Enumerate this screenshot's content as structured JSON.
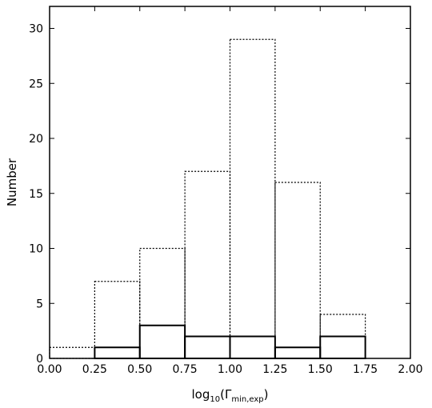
{
  "chart_data": {
    "type": "bar",
    "xlabel": "log10(Γmin,exp)",
    "xlabel_parts": {
      "main": "log",
      "sub1": "10",
      "open": "(Γ",
      "sub2": "min,exp",
      "close": ")"
    },
    "ylabel": "Number",
    "xlim": [
      0.0,
      2.0
    ],
    "ylim": [
      0,
      32
    ],
    "xticks": [
      0.0,
      0.25,
      0.5,
      0.75,
      1.0,
      1.25,
      1.5,
      1.75,
      2.0
    ],
    "xtick_labels": [
      "0.00",
      "0.25",
      "0.50",
      "0.75",
      "1.00",
      "1.25",
      "1.50",
      "1.75",
      "2.00"
    ],
    "yticks": [
      0,
      5,
      10,
      15,
      20,
      25,
      30
    ],
    "ytick_labels": [
      "0",
      "5",
      "10",
      "15",
      "20",
      "25",
      "30"
    ],
    "bin_edges": [
      0.0,
      0.25,
      0.5,
      0.75,
      1.0,
      1.25,
      1.5,
      1.75,
      2.0
    ],
    "series": [
      {
        "style": "dotted",
        "values": [
          1,
          7,
          10,
          17,
          29,
          16,
          4,
          0
        ]
      },
      {
        "style": "solid",
        "values": [
          0,
          1,
          3,
          2,
          2,
          1,
          2,
          0
        ]
      }
    ],
    "grid": false
  }
}
